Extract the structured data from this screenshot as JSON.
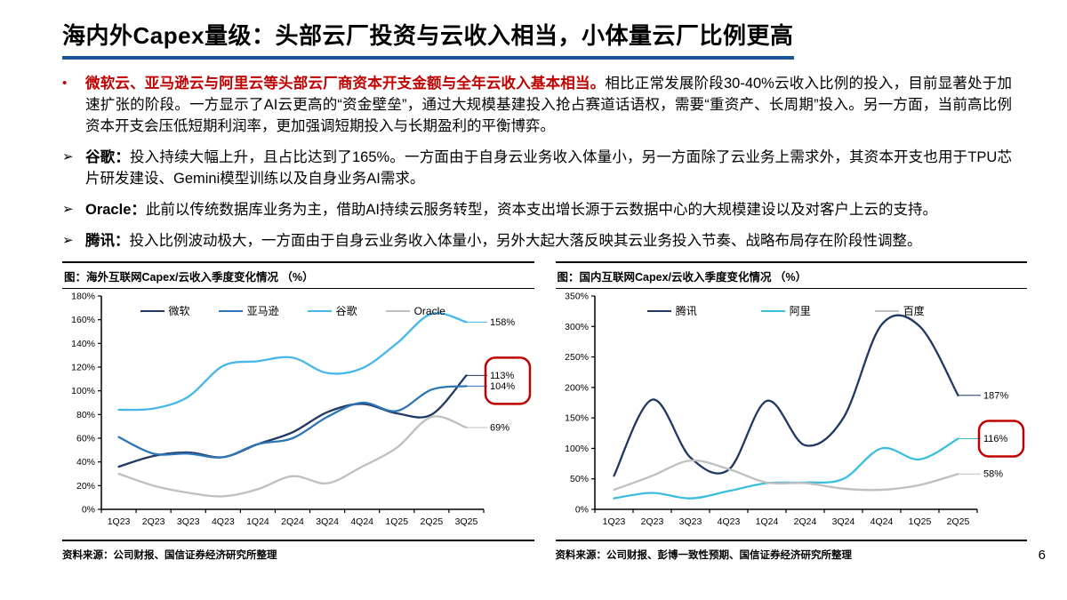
{
  "page": {
    "title": "海内外Capex量级：头部云厂投资与云收入相当，小体量云厂比例更高",
    "page_number": "6"
  },
  "colors": {
    "accent_red": "#C00000",
    "title_underline_blue": "#17569B",
    "axis_black": "#000000"
  },
  "bullets": [
    {
      "marker": "•",
      "lead": "微软云、亚马逊云与阿里云等头部云厂商资本开支金额与全年云收入基本相当。",
      "body": "相比正常发展阶段30-40%云收入比例的投入，目前显著处于加速扩张的阶段。一方显示了AI云更高的“资金壁垒”，通过大规模基建投入抢占赛道话语权，需要“重资产、长周期”投入。另一方面，当前高比例资本开支会压低短期利润率，更加强调短期投入与长期盈利的平衡博弈。"
    },
    {
      "marker": "➢",
      "lead": "谷歌：",
      "body": "投入持续大幅上升，且占比达到了165%。一方面由于自身云业务收入体量小，另一方面除了云业务上需求外，其资本开支也用于TPU芯片研发建设、Gemini模型训练以及自身业务AI需求。"
    },
    {
      "marker": "➢",
      "lead": "Oracle：",
      "body": "此前以传统数据库业务为主，借助AI持续云服务转型，资本支出增长源于云数据中心的大规模建设以及对客户上云的支持。"
    },
    {
      "marker": "➢",
      "lead": "腾讯：",
      "body": "投入比例波动极大，一方面由于自身云业务收入体量小，另外大起大落反映其云业务投入节奏、战略布局存在阶段性调整。"
    }
  ],
  "chart_data": [
    {
      "type": "line",
      "panel_title": "图：海外互联网Capex/云收入季度变化情况 （%）",
      "source": "资料来源：公司财报、国信证券经济研究所整理",
      "categories": [
        "1Q23",
        "2Q23",
        "3Q23",
        "4Q23",
        "1Q24",
        "2Q24",
        "3Q24",
        "4Q24",
        "1Q25",
        "2Q25",
        "3Q25"
      ],
      "ylim": [
        0,
        180
      ],
      "ytick_step": 20,
      "grid": false,
      "legend_position": "top",
      "highlight_box_color": "#C00000",
      "series": [
        {
          "name": "微软",
          "color": "#1F3864",
          "values": [
            36,
            45,
            48,
            44,
            55,
            65,
            82,
            89,
            81,
            80,
            113
          ],
          "end_label": "113%",
          "highlight": true
        },
        {
          "name": "亚马逊",
          "color": "#2E75B6",
          "values": [
            61,
            47,
            47,
            44,
            55,
            60,
            78,
            90,
            83,
            101,
            104
          ],
          "end_label": "104%",
          "highlight": true
        },
        {
          "name": "谷歌",
          "color": "#45B7E8",
          "values": [
            84,
            85,
            95,
            121,
            125,
            128,
            115,
            119,
            140,
            165,
            158
          ],
          "end_label": "158%",
          "highlight": false
        },
        {
          "name": "Oracle",
          "color": "#BFBFBF",
          "values": [
            30,
            20,
            14,
            11,
            17,
            28,
            22,
            36,
            52,
            78,
            69
          ],
          "end_label": "69%",
          "highlight": false
        }
      ]
    },
    {
      "type": "line",
      "panel_title": "图：国内互联网Capex/云收入季度变化情况 （%）",
      "source": "资料来源：公司财报、彭博一致性预期、国信证券经济研究所整理",
      "categories": [
        "1Q23",
        "2Q23",
        "3Q23",
        "4Q23",
        "1Q24",
        "2Q24",
        "3Q24",
        "4Q24",
        "1Q25",
        "2Q25"
      ],
      "ylim": [
        0,
        350
      ],
      "ytick_step": 50,
      "grid": false,
      "legend_position": "top",
      "highlight_box_color": "#C00000",
      "series": [
        {
          "name": "腾讯",
          "color": "#1F3864",
          "values": [
            55,
            180,
            85,
            65,
            178,
            105,
            150,
            303,
            300,
            187
          ],
          "end_label": "187%",
          "highlight": false
        },
        {
          "name": "阿里",
          "color": "#3BBEDE",
          "values": [
            18,
            27,
            18,
            30,
            43,
            44,
            50,
            100,
            82,
            116
          ],
          "end_label": "116%",
          "highlight": true
        },
        {
          "name": "百度",
          "color": "#BFBFBF",
          "values": [
            32,
            55,
            80,
            66,
            44,
            43,
            34,
            32,
            40,
            58
          ],
          "end_label": "58%",
          "highlight": false
        }
      ]
    }
  ]
}
